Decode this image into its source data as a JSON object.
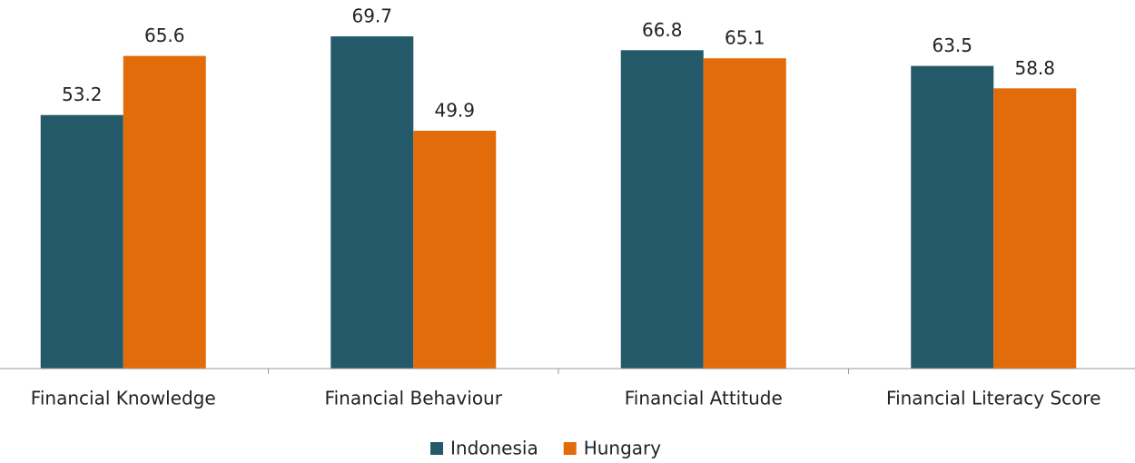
{
  "chart_data": {
    "type": "bar",
    "categories": [
      "Financial Knowledge",
      "Financial Behaviour",
      "Financial Attitude",
      "Financial Literacy Score"
    ],
    "series": [
      {
        "name": "Indonesia",
        "color": "#235968",
        "values": [
          53.2,
          69.7,
          66.8,
          63.5
        ]
      },
      {
        "name": "Hungary",
        "color": "#e36c0a",
        "values": [
          65.6,
          49.9,
          65.1,
          58.8
        ]
      }
    ],
    "ylim": [
      0,
      80
    ],
    "legend": "bottom"
  }
}
